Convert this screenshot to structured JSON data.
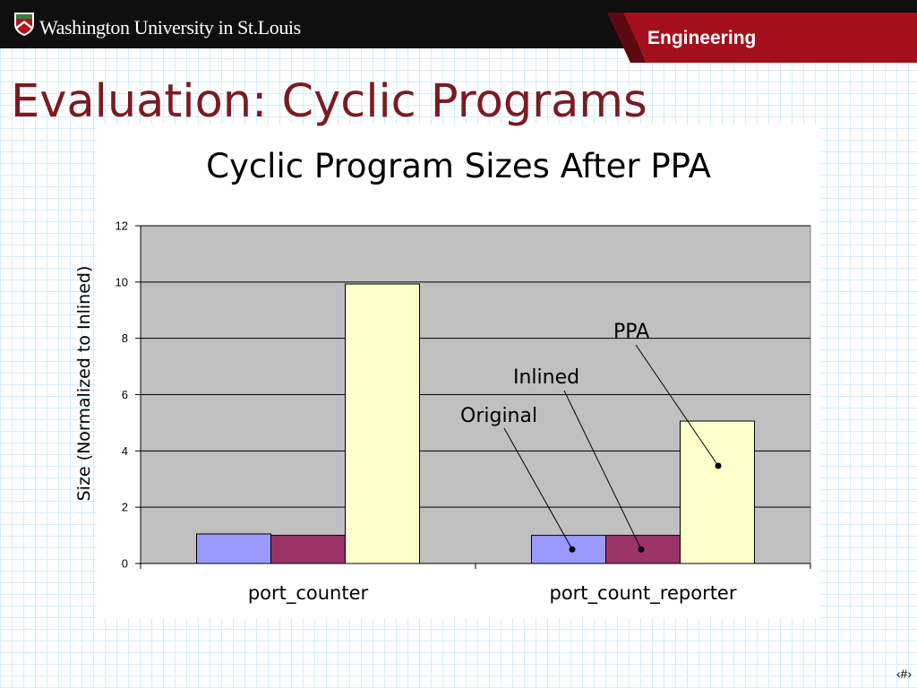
{
  "header": {
    "logo_icon": "shield-crest-icon",
    "university": "Washington University in St.Louis",
    "school": "Engineering"
  },
  "slide": {
    "title": "Evaluation: Cyclic Programs",
    "page_number": "‹#›"
  },
  "colors": {
    "header_bg": "#0f0f0f",
    "school_band": "#a3101c",
    "school_band_edge": "#5c0a10",
    "title": "#7b1a22",
    "slide_grid": "#d3eef8",
    "plot_bg": "#c0c0c0",
    "grid": "#000000"
  },
  "chart_data": {
    "type": "bar",
    "title": "Cyclic Program Sizes After PPA",
    "xlabel": "",
    "ylabel": "Size (Normalized to Inlined)",
    "categories": [
      "port_counter",
      "port_count_reporter"
    ],
    "series": [
      {
        "name": "Original",
        "color": "#9999ff",
        "values": [
          1.05,
          1.0
        ]
      },
      {
        "name": "Inlined",
        "color": "#993366",
        "values": [
          1.0,
          1.0
        ]
      },
      {
        "name": "PPA",
        "color": "#ffffcc",
        "values": [
          9.93,
          5.06
        ]
      }
    ],
    "ylim": [
      0,
      12
    ],
    "yticks": [
      0,
      2,
      4,
      6,
      8,
      10,
      12
    ],
    "grid": true,
    "legend": "callouts"
  }
}
